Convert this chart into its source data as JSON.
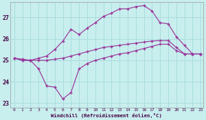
{
  "xlabel": "Windchill (Refroidissement éolien,°C)",
  "background_color": "#c8eeee",
  "grid_color": "#aadddd",
  "line_color": "#993399",
  "xlim": [
    -0.5,
    23.3
  ],
  "ylim": [
    22.8,
    27.7
  ],
  "yticks": [
    23,
    24,
    25,
    26,
    27
  ],
  "xticks": [
    0,
    1,
    2,
    3,
    4,
    5,
    6,
    7,
    8,
    9,
    10,
    11,
    12,
    13,
    14,
    15,
    16,
    17,
    18,
    19,
    20,
    21,
    22,
    23
  ],
  "series": {
    "line1_x": [
      0,
      1,
      2,
      3,
      4,
      5,
      6,
      7,
      8,
      9,
      10,
      11,
      12,
      13,
      14,
      15,
      16,
      17,
      18,
      19,
      20,
      21,
      22,
      23
    ],
    "line1_y": [
      25.1,
      25.05,
      25.0,
      25.0,
      25.0,
      25.05,
      25.1,
      25.2,
      25.3,
      25.4,
      25.5,
      25.6,
      25.65,
      25.7,
      25.75,
      25.8,
      25.85,
      25.9,
      25.92,
      25.92,
      25.6,
      25.3,
      25.3,
      25.3
    ],
    "line2_x": [
      0,
      1,
      2,
      3,
      4,
      5,
      6,
      7,
      8,
      9,
      10,
      11,
      12,
      13,
      14,
      15,
      16,
      17,
      18,
      19,
      20,
      21,
      22,
      23
    ],
    "line2_y": [
      25.1,
      25.0,
      25.0,
      25.1,
      25.2,
      25.5,
      25.9,
      26.45,
      26.2,
      26.5,
      26.75,
      27.05,
      27.2,
      27.4,
      27.4,
      27.5,
      27.55,
      27.3,
      26.75,
      26.7,
      26.1,
      25.7,
      25.3,
      25.3
    ],
    "line3_x": [
      0,
      1,
      2,
      3,
      4,
      5,
      6,
      7,
      8,
      9,
      10,
      11,
      12,
      13,
      14,
      15,
      16,
      17,
      18,
      19,
      20,
      21,
      22,
      23
    ],
    "line3_y": [
      25.1,
      25.0,
      25.0,
      24.6,
      23.8,
      23.75,
      23.2,
      23.5,
      24.6,
      24.85,
      25.0,
      25.1,
      25.2,
      25.3,
      25.35,
      25.45,
      25.55,
      25.65,
      25.75,
      25.75,
      25.45,
      25.3,
      25.3,
      25.3
    ]
  }
}
